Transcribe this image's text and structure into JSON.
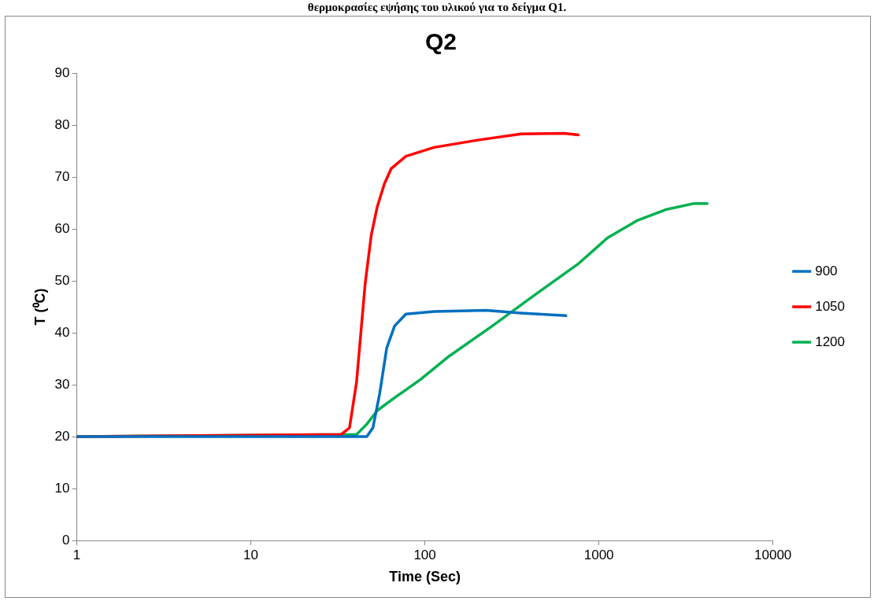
{
  "chart_data": {
    "type": "line",
    "title": "Q2",
    "xlabel": "Time (Sec)",
    "ylabel": "T (⁰C)",
    "annotations": [
      "θερμοκρασίες εψήσης του υλικού για το δείγμα Q1."
    ],
    "log": "x",
    "xlim": [
      1,
      10000
    ],
    "xticks": [
      1,
      10,
      100,
      1000,
      10000
    ],
    "ylim": [
      0,
      90
    ],
    "yticks": [
      0,
      10,
      20,
      30,
      40,
      50,
      60,
      70,
      80,
      90
    ],
    "grid": false,
    "legend": "right",
    "marker": "none",
    "line_style": "solid",
    "series": [
      {
        "name": "900",
        "color": "#0070c0",
        "x": [
          1,
          46.4,
          50.3,
          55,
          60.4,
          67,
          77.8,
          113,
          225,
          357,
          647
        ],
        "values": [
          20,
          20,
          21.7,
          28.3,
          37.1,
          41.3,
          43.6,
          44.1,
          44.3,
          43.8,
          43.3
        ]
      },
      {
        "name": "1050",
        "color": "#ff0000",
        "x": [
          1,
          33,
          36.9,
          40.5,
          45.4,
          49.2,
          53.2,
          58.4,
          64,
          77.8,
          113,
          201,
          357,
          632,
          760
        ],
        "values": [
          20,
          20.4,
          21.7,
          30.5,
          49.5,
          58.8,
          64.2,
          68.6,
          71.6,
          74.0,
          75.7,
          77.1,
          78.3,
          78.4,
          78.1
        ]
      },
      {
        "name": "1200",
        "color": "#00b050",
        "x": [
          1,
          40.5,
          46.4,
          53.2,
          64,
          94.4,
          138,
          244,
          433,
          769,
          1122,
          1656,
          2415,
          3524,
          4190
        ],
        "values": [
          20,
          20.4,
          22.4,
          25.0,
          27.0,
          31.0,
          35.5,
          41.3,
          47.4,
          53.4,
          58.3,
          61.6,
          63.7,
          64.9,
          64.9
        ]
      }
    ]
  }
}
